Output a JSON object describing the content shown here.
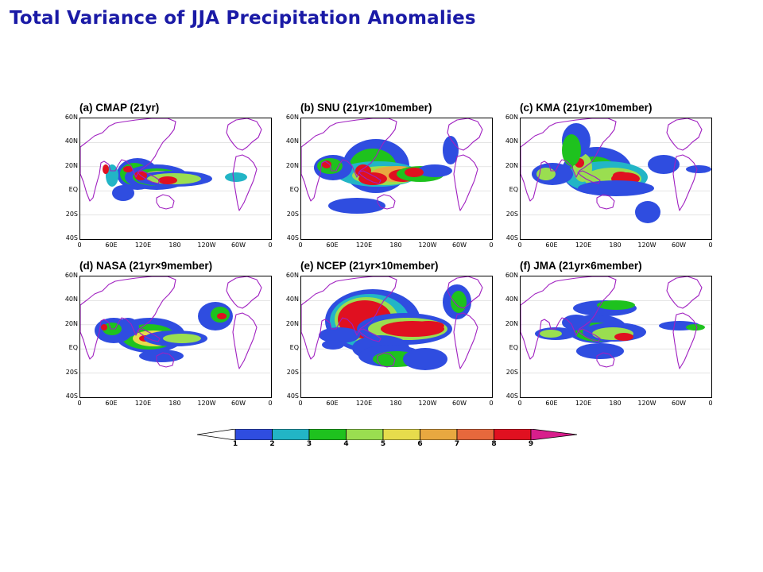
{
  "title": "Total Variance of JJA Precipitation Anomalies",
  "panels": [
    {
      "label": "(a) CMAP (21yr)"
    },
    {
      "label": "(b) SNU (21yr×10member)"
    },
    {
      "label": "(c) KMA (21yr×10member)"
    },
    {
      "label": "(d) NASA (21yr×9member)"
    },
    {
      "label": "(e) NCEP (21yr×10member)"
    },
    {
      "label": "(f) JMA (21yr×6member)"
    }
  ],
  "y_ticks": [
    "60N",
    "40N",
    "20N",
    "EQ",
    "20S",
    "40S"
  ],
  "x_ticks": [
    "0",
    "60E",
    "120E",
    "180",
    "120W",
    "60W",
    "0"
  ],
  "colorbar": {
    "levels": [
      "1",
      "2",
      "3",
      "4",
      "5",
      "6",
      "7",
      "8",
      "9"
    ],
    "colors": [
      "#ffffff",
      "#2f4de0",
      "#22b5c6",
      "#1ec21e",
      "#9ade50",
      "#e6dc4c",
      "#e8a840",
      "#e6683c",
      "#e01020",
      "#d81e8c"
    ]
  },
  "colors": {
    "coastline": "#a020c0",
    "title": "#1a1aa6"
  }
}
